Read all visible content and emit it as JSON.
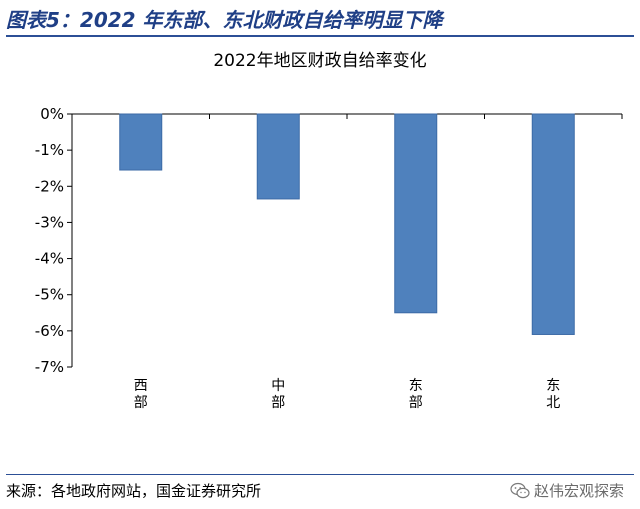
{
  "figure_title": "图表5：2022 年东部、东北财政自给率明显下降",
  "source_text": "来源：各地政府网站，国金证券研究所",
  "watermark": {
    "text": "赵伟宏观探索",
    "icon": "wechat-icon"
  },
  "colors": {
    "bar": "#4f81bd",
    "bar_edge": "#3c6aa6",
    "title": "#1f3f86",
    "rule": "#2c4f96"
  },
  "chart_data": {
    "type": "bar",
    "title": "2022年地区财政自给率变化",
    "categories": [
      "西部",
      "中部",
      "东部",
      "东北"
    ],
    "values": [
      -1.55,
      -2.35,
      -5.5,
      -6.1
    ],
    "ylim": [
      -7,
      0
    ],
    "yticks": [
      "0%",
      "-1%",
      "-2%",
      "-3%",
      "-4%",
      "-5%",
      "-6%",
      "-7%"
    ],
    "unit": "%",
    "xlabel": "",
    "ylabel": "",
    "grid": false,
    "legend": "none"
  }
}
